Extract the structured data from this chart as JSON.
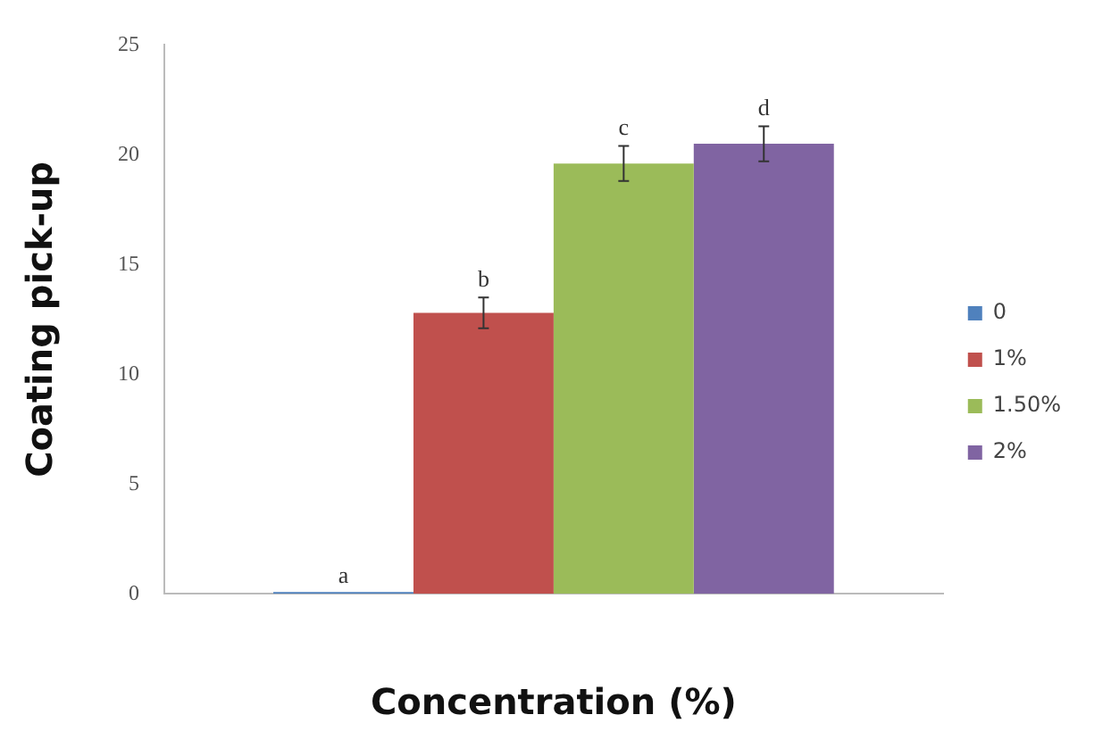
{
  "chart_data": {
    "type": "bar",
    "xlabel": "Concentration (%)",
    "ylabel": "Coating pick-up",
    "categories": [
      null
    ],
    "ylim": [
      0,
      25
    ],
    "yticks": [
      0,
      5,
      10,
      15,
      20,
      25
    ],
    "grid": false,
    "legend": "right",
    "series": [
      {
        "name": "0",
        "color": "#4f81bd",
        "values": [
          0
        ],
        "value_labels": [
          "a"
        ]
      },
      {
        "name": "1%",
        "color": "#c0504d",
        "values": [
          12.8
        ],
        "errors": [
          0.7
        ],
        "value_labels": [
          "b"
        ]
      },
      {
        "name": "1.50%",
        "color": "#9bbb59",
        "values": [
          19.6
        ],
        "errors": [
          0.8
        ],
        "value_labels": [
          "c"
        ]
      },
      {
        "name": "2%",
        "color": "#8064a2",
        "values": [
          20.5
        ],
        "errors": [
          0.8
        ],
        "value_labels": [
          "d"
        ]
      }
    ]
  }
}
